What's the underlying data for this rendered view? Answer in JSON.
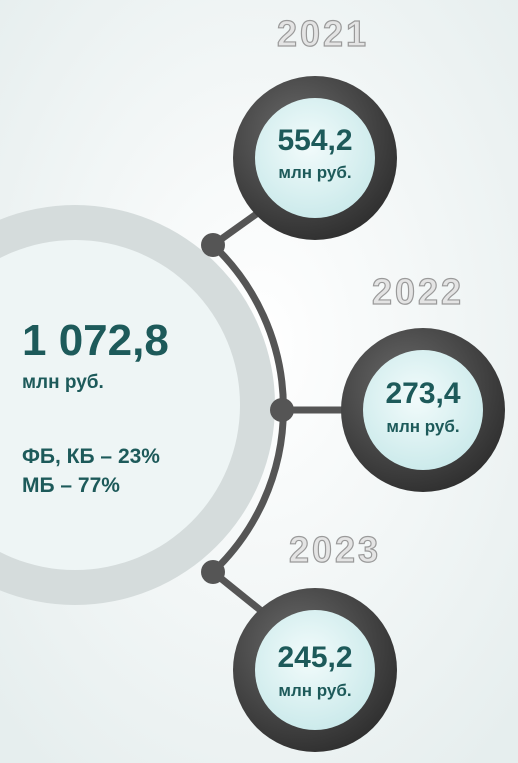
{
  "total": {
    "value": "1 072,8",
    "unit": "млн руб.",
    "shares": [
      "ФБ, КБ – 23%",
      "МБ – 77%"
    ]
  },
  "years": [
    {
      "year": "2021",
      "value": "554,2",
      "unit": "млн руб."
    },
    {
      "year": "2022",
      "value": "273,4",
      "unit": "млн руб."
    },
    {
      "year": "2023",
      "value": "245,2",
      "unit": "млн руб."
    }
  ]
}
